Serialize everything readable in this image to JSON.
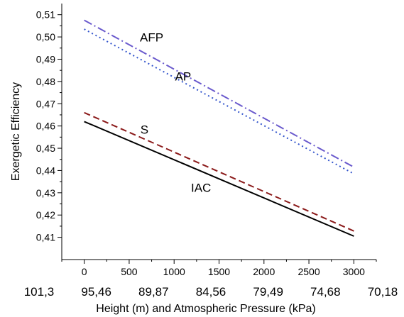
{
  "chart_data": {
    "type": "line",
    "title": "",
    "xlabel": "Height (m) and Atmospheric Pressure (kPa)",
    "ylabel": "Exergetic Efficiency",
    "xlim": [
      -250,
      3250
    ],
    "ylim": [
      0.4,
      0.515
    ],
    "x_ticks": [
      0,
      500,
      1000,
      1500,
      2000,
      2500,
      3000
    ],
    "x_tick_labels": [
      "0",
      "500",
      "1000",
      "1500",
      "2000",
      "2500",
      "3000"
    ],
    "y_ticks": [
      0.41,
      0.42,
      0.43,
      0.44,
      0.45,
      0.46,
      0.47,
      0.48,
      0.49,
      0.5,
      0.51
    ],
    "y_tick_labels": [
      "0,41",
      "0,42",
      "0,43",
      "0,44",
      "0,45",
      "0,46",
      "0,47",
      "0,48",
      "0,49",
      "0,50",
      "0,51"
    ],
    "secondary_x_labels": [
      "101,3",
      "95,46",
      "89,87",
      "84,56",
      "79,49",
      "74,68",
      "70,18"
    ],
    "grid": false,
    "legend": "inline labels",
    "series": [
      {
        "name": "AFP",
        "x": [
          0,
          3000
        ],
        "values": [
          0.5075,
          0.4415
        ],
        "color": "#6a5acd",
        "dash": "12,4,2,4"
      },
      {
        "name": "AP",
        "x": [
          0,
          3000
        ],
        "values": [
          0.5035,
          0.4385
        ],
        "color": "#3355cc",
        "dash": "2,4"
      },
      {
        "name": "S",
        "x": [
          0,
          3000
        ],
        "values": [
          0.466,
          0.4128
        ],
        "color": "#8b1a1a",
        "dash": "9,5"
      },
      {
        "name": "IAC",
        "x": [
          0,
          3000
        ],
        "values": [
          0.462,
          0.4105
        ],
        "color": "#000000",
        "dash": ""
      }
    ],
    "annotations": [
      {
        "text": "AFP",
        "x": 750,
        "y": 0.498
      },
      {
        "text": "AP",
        "x": 1100,
        "y": 0.4805
      },
      {
        "text": "S",
        "x": 670,
        "y": 0.4565
      },
      {
        "text": "IAC",
        "x": 1300,
        "y": 0.4305
      }
    ]
  }
}
